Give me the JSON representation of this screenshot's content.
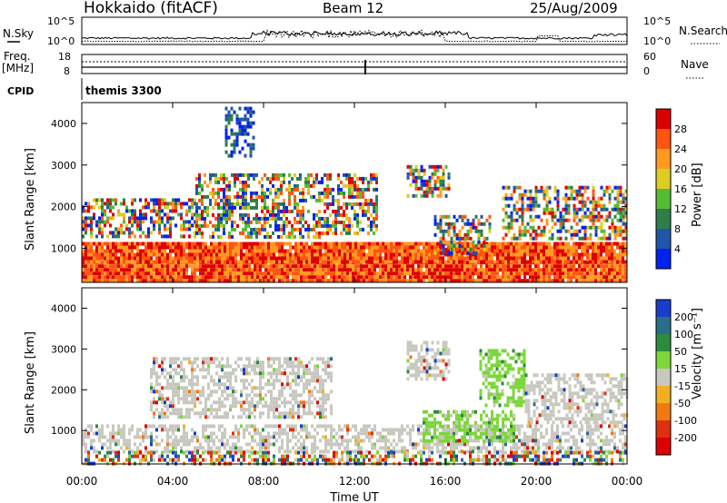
{
  "header": {
    "station": "Hokkaido (fitACF)",
    "beam": "Beam 12",
    "date": "25/Aug/2009"
  },
  "noise_panel": {
    "left_label": "N.Sky",
    "right_label": "N.Search",
    "left_ticks": [
      "10^5",
      "10^0"
    ],
    "right_ticks": [
      "10^5",
      "10^0"
    ]
  },
  "freq_panel": {
    "left_label_1": "Freq.",
    "left_label_2": "[MHz]",
    "left_ticks": [
      "18",
      "8"
    ],
    "right_label": "Nave",
    "right_ticks": [
      "60",
      "0"
    ]
  },
  "cpid": {
    "label": "CPID",
    "value": "themis 3300"
  },
  "y_axis": {
    "label": "Slant Range [km]",
    "ticks": [
      "1000",
      "2000",
      "3000",
      "4000"
    ]
  },
  "x_axis": {
    "label": "Time UT",
    "ticks": [
      "00:00",
      "04:00",
      "08:00",
      "12:00",
      "16:00",
      "20:00",
      "00:00"
    ]
  },
  "power_scale": {
    "label": "Power [dB]",
    "ticks": [
      "4",
      "8",
      "12",
      "16",
      "20",
      "24",
      "28"
    ],
    "colors": [
      "#0022ee",
      "#2255aa",
      "#2e7d4a",
      "#55bb33",
      "#ddcc22",
      "#ff9922",
      "#ff5511",
      "#dd0000"
    ]
  },
  "velocity_scale": {
    "label": "Velocity [m s⁻¹]",
    "ticks": [
      "200",
      "100",
      "50",
      "15",
      "-15",
      "-50",
      "-100",
      "-200"
    ],
    "colors": [
      "#1a3dcc",
      "#2a6e8a",
      "#2e8b3e",
      "#7dd63a",
      "#c8c8c0",
      "#f0b020",
      "#f07a10",
      "#e03010",
      "#dd0000"
    ]
  },
  "chart_data": {
    "type": "heatmap",
    "x_range_hours": [
      0,
      24
    ],
    "y_range_km": [
      180,
      4500
    ],
    "panels": [
      {
        "name": "Power",
        "regions": [
          {
            "t": [
              0,
              24
            ],
            "r": [
              180,
              700
            ],
            "level": "high"
          },
          {
            "t": [
              0,
              24
            ],
            "r": [
              700,
              1150
            ],
            "level": "high"
          },
          {
            "t": [
              0,
              5
            ],
            "r": [
              1300,
              2200
            ],
            "level": "mixed"
          },
          {
            "t": [
              5,
              11
            ],
            "r": [
              1300,
              2800
            ],
            "level": "mixed"
          },
          {
            "t": [
              6.3,
              7.6
            ],
            "r": [
              3200,
              4400
            ],
            "level": "low"
          },
          {
            "t": [
              11,
              13
            ],
            "r": [
              1400,
              2800
            ],
            "level": "mixed"
          },
          {
            "t": [
              14.3,
              16.2
            ],
            "r": [
              2300,
              3000
            ],
            "level": "mixed"
          },
          {
            "t": [
              15.5,
              18
            ],
            "r": [
              900,
              1800
            ],
            "level": "mixed"
          },
          {
            "t": [
              18.5,
              24
            ],
            "r": [
              1200,
              2500
            ],
            "level": "mixed"
          }
        ]
      },
      {
        "name": "Velocity",
        "regions": [
          {
            "t": [
              0,
              24
            ],
            "r": [
              500,
              1150
            ],
            "level": "near_zero"
          },
          {
            "t": [
              0,
              24
            ],
            "r": [
              180,
              500
            ],
            "level": "mixed"
          },
          {
            "t": [
              3,
              11
            ],
            "r": [
              1300,
              2800
            ],
            "level": "near_zero"
          },
          {
            "t": [
              14.3,
              16.2
            ],
            "r": [
              2300,
              3200
            ],
            "level": "near_zero"
          },
          {
            "t": [
              15,
              19
            ],
            "r": [
              700,
              1500
            ],
            "level": "positive"
          },
          {
            "t": [
              17.5,
              19.5
            ],
            "r": [
              1600,
              3000
            ],
            "level": "positive"
          },
          {
            "t": [
              19.5,
              24
            ],
            "r": [
              1200,
              2400
            ],
            "level": "near_zero"
          }
        ]
      }
    ]
  }
}
